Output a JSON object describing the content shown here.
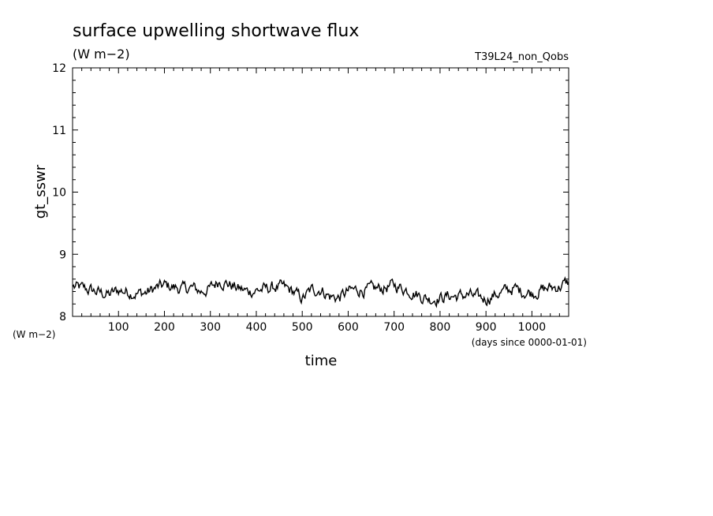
{
  "chart_data": {
    "type": "line",
    "title": "surface upwelling shortwave flux",
    "units": "(W m−2)",
    "run_label": "T39L24_non_Qobs",
    "ylabel": "gt_sswr",
    "xlabel": "time",
    "x_units": "(days since 0000-01-01)",
    "y_units": "(W m−2)",
    "xlim": [
      0,
      1080
    ],
    "ylim": [
      8,
      12
    ],
    "x_tick_labels": [
      "100",
      "200",
      "300",
      "400",
      "500",
      "600",
      "700",
      "800",
      "900",
      "1000"
    ],
    "y_tick_labels": [
      "8",
      "9",
      "10",
      "11",
      "12"
    ],
    "series": [
      {
        "x": [
          0,
          20,
          40,
          60,
          80,
          100,
          120,
          140,
          160,
          180,
          200,
          220,
          240,
          260,
          280,
          300,
          320,
          340,
          360,
          380,
          400,
          420,
          440,
          460,
          480,
          500,
          520,
          540,
          560,
          580,
          600,
          620,
          640,
          660,
          680,
          700,
          720,
          740,
          760,
          780,
          800,
          820,
          840,
          860,
          880,
          900,
          920,
          940,
          960,
          980,
          1000,
          1020,
          1040,
          1060,
          1080
        ],
        "y": [
          8.48,
          8.45,
          8.42,
          8.38,
          8.35,
          8.42,
          8.4,
          8.37,
          8.38,
          8.45,
          8.5,
          8.47,
          8.44,
          8.46,
          8.4,
          8.45,
          8.58,
          8.52,
          8.45,
          8.4,
          8.42,
          8.44,
          8.47,
          8.46,
          8.4,
          8.28,
          8.42,
          8.44,
          8.32,
          8.3,
          8.4,
          8.43,
          8.42,
          8.44,
          8.46,
          8.5,
          8.45,
          8.4,
          8.32,
          8.28,
          8.3,
          8.33,
          8.32,
          8.35,
          8.3,
          8.28,
          8.35,
          8.4,
          8.45,
          8.4,
          8.38,
          8.42,
          8.46,
          8.48,
          8.55
        ]
      }
    ]
  }
}
